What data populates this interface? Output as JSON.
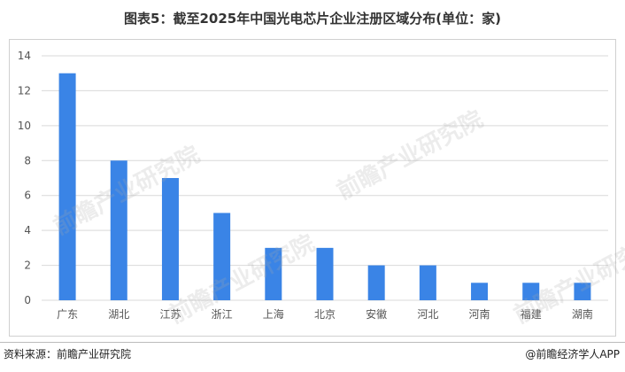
{
  "title": "图表5：截至2025年中国光电芯片企业注册区域分布(单位：家)",
  "footer": {
    "source": "资料来源：前瞻产业研究院",
    "brand": "@前瞻经济学人APP"
  },
  "watermark": "前瞻产业研究院",
  "colors": {
    "bar": "#3a84e6",
    "grid": "#d9d9d9",
    "axis_text": "#555555"
  },
  "chart_data": {
    "type": "bar",
    "title": "图表5：截至2025年中国光电芯片企业注册区域分布(单位：家)",
    "categories": [
      "广东",
      "湖北",
      "江苏",
      "浙江",
      "上海",
      "北京",
      "安徽",
      "河北",
      "河南",
      "福建",
      "湖南"
    ],
    "values": [
      13,
      8,
      7,
      5,
      3,
      3,
      2,
      2,
      1,
      1,
      1
    ],
    "xlabel": "",
    "ylabel": "",
    "ylim": [
      0,
      14
    ],
    "yticks": [
      0,
      2,
      4,
      6,
      8,
      10,
      12,
      14
    ],
    "grid": true,
    "legend": "none"
  }
}
